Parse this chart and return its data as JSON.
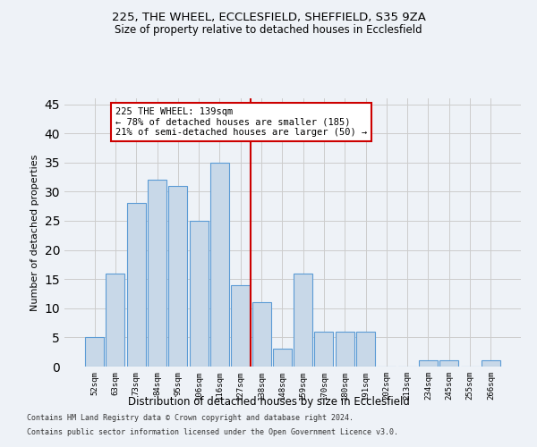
{
  "title": "225, THE WHEEL, ECCLESFIELD, SHEFFIELD, S35 9ZA",
  "subtitle": "Size of property relative to detached houses in Ecclesfield",
  "xlabel": "Distribution of detached houses by size in Ecclesfield",
  "ylabel": "Number of detached properties",
  "bar_labels": [
    "52sqm",
    "63sqm",
    "73sqm",
    "84sqm",
    "95sqm",
    "106sqm",
    "116sqm",
    "127sqm",
    "138sqm",
    "148sqm",
    "159sqm",
    "170sqm",
    "180sqm",
    "191sqm",
    "202sqm",
    "213sqm",
    "234sqm",
    "245sqm",
    "255sqm",
    "266sqm"
  ],
  "bar_values": [
    5,
    16,
    28,
    32,
    31,
    25,
    35,
    14,
    11,
    3,
    16,
    6,
    6,
    6,
    0,
    0,
    1,
    1,
    0,
    1
  ],
  "bar_color": "#c8d8e8",
  "bar_edge_color": "#5b9bd5",
  "vline_color": "#cc0000",
  "annotation_text": "225 THE WHEEL: 139sqm\n← 78% of detached houses are smaller (185)\n21% of semi-detached houses are larger (50) →",
  "annotation_box_color": "#ffffff",
  "annotation_box_edge": "#cc0000",
  "ylim": [
    0,
    46
  ],
  "yticks": [
    0,
    5,
    10,
    15,
    20,
    25,
    30,
    35,
    40,
    45
  ],
  "grid_color": "#cccccc",
  "bg_color": "#eef2f7",
  "footer_line1": "Contains HM Land Registry data © Crown copyright and database right 2024.",
  "footer_line2": "Contains public sector information licensed under the Open Government Licence v3.0."
}
